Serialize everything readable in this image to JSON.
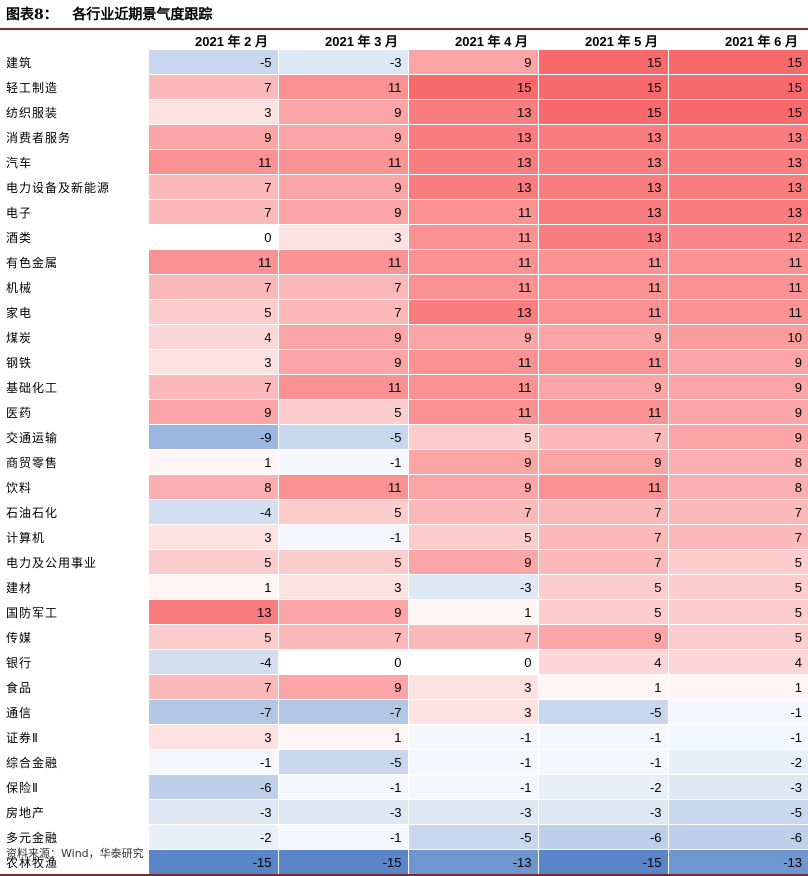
{
  "title": "图表8：   各行业近期景气度跟踪",
  "source": "资料来源：Wind，华泰研究",
  "chart_data": {
    "type": "heatmap",
    "columns": [
      "2021 年 2 月",
      "2021 年 3 月",
      "2021 年 4 月",
      "2021 年 5 月",
      "2021 年 6 月"
    ],
    "rows": [
      {
        "name": "建筑",
        "values": [
          -5,
          -3,
          9,
          15,
          15
        ]
      },
      {
        "name": "轻工制造",
        "values": [
          7,
          11,
          15,
          15,
          15
        ]
      },
      {
        "name": "纺织服装",
        "values": [
          3,
          9,
          13,
          15,
          15
        ]
      },
      {
        "name": "消费者服务",
        "values": [
          9,
          9,
          13,
          13,
          13
        ]
      },
      {
        "name": "汽车",
        "values": [
          11,
          11,
          13,
          13,
          13
        ]
      },
      {
        "name": "电力设备及新能源",
        "values": [
          7,
          9,
          13,
          13,
          13
        ]
      },
      {
        "name": "电子",
        "values": [
          7,
          9,
          11,
          13,
          13
        ]
      },
      {
        "name": "酒类",
        "values": [
          0,
          3,
          11,
          13,
          12
        ]
      },
      {
        "name": "有色金属",
        "values": [
          11,
          11,
          11,
          11,
          11
        ]
      },
      {
        "name": "机械",
        "values": [
          7,
          7,
          11,
          11,
          11
        ]
      },
      {
        "name": "家电",
        "values": [
          5,
          7,
          13,
          11,
          11
        ]
      },
      {
        "name": "煤炭",
        "values": [
          4,
          9,
          9,
          9,
          10
        ]
      },
      {
        "name": "钢铁",
        "values": [
          3,
          9,
          11,
          11,
          9
        ]
      },
      {
        "name": "基础化工",
        "values": [
          7,
          11,
          11,
          9,
          9
        ]
      },
      {
        "name": "医药",
        "values": [
          9,
          5,
          11,
          11,
          9
        ]
      },
      {
        "name": "交通运输",
        "values": [
          -9,
          -5,
          5,
          7,
          9
        ]
      },
      {
        "name": "商贸零售",
        "values": [
          1,
          -1,
          9,
          9,
          8
        ]
      },
      {
        "name": "饮料",
        "values": [
          8,
          11,
          9,
          11,
          8
        ]
      },
      {
        "name": "石油石化",
        "values": [
          -4,
          5,
          7,
          7,
          7
        ]
      },
      {
        "name": "计算机",
        "values": [
          3,
          -1,
          5,
          7,
          7
        ]
      },
      {
        "name": "电力及公用事业",
        "values": [
          5,
          5,
          9,
          7,
          5
        ]
      },
      {
        "name": "建材",
        "values": [
          1,
          3,
          -3,
          5,
          5
        ]
      },
      {
        "name": "国防军工",
        "values": [
          13,
          9,
          1,
          5,
          5
        ]
      },
      {
        "name": "传媒",
        "values": [
          5,
          7,
          7,
          9,
          5
        ]
      },
      {
        "name": "银行",
        "values": [
          -4,
          0,
          0,
          4,
          4
        ]
      },
      {
        "name": "食品",
        "values": [
          7,
          9,
          3,
          1,
          1
        ]
      },
      {
        "name": "通信",
        "values": [
          -7,
          -7,
          3,
          -5,
          -1
        ]
      },
      {
        "name": "证券Ⅱ",
        "values": [
          3,
          1,
          -1,
          -1,
          -1
        ]
      },
      {
        "name": "综合金融",
        "values": [
          -1,
          -5,
          -1,
          -1,
          -2
        ]
      },
      {
        "name": "保险Ⅱ",
        "values": [
          -6,
          -1,
          -1,
          -2,
          -3
        ]
      },
      {
        "name": "房地产",
        "values": [
          -3,
          -3,
          -3,
          -3,
          -5
        ]
      },
      {
        "name": "多元金融",
        "values": [
          -2,
          -1,
          -5,
          -6,
          -6
        ]
      },
      {
        "name": "农林牧渔",
        "values": [
          -15,
          -15,
          -13,
          -15,
          -13
        ]
      }
    ],
    "color_scale": {
      "negative": "#5a86c9",
      "zero": "#ffffff",
      "positive": "#f8696b"
    }
  }
}
